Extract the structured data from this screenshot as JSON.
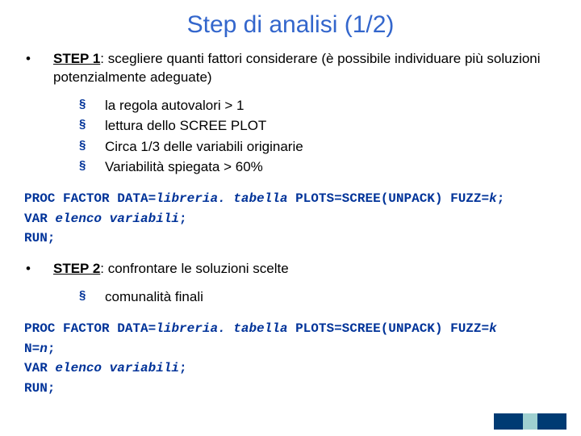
{
  "title_text": "Step di analisi (1/2)",
  "title_color": "#3366cc",
  "bullet_dot": "•",
  "square_bullet": "§",
  "square_bullet_color": "#003399",
  "step1": {
    "label": "STEP 1",
    "rest": ": scegliere quanti fattori considerare (è possibile individuare più soluzioni potenzialmente adeguate)",
    "items": [
      "la regola autovalori > 1",
      "lettura dello SCREE PLOT",
      "Circa 1/3 delle variabili originarie",
      "Variabilità spiegata > 60%"
    ]
  },
  "code1": {
    "line1": {
      "t1": "PROC FACTOR ",
      "t2": "DATA=",
      "t3": "libreria. tabella",
      "t4": " PLOTS=SCREE(UNPACK) FUZZ=",
      "t5": "k",
      "t6": ";"
    },
    "line2": {
      "t1": "VAR ",
      "t2": "elenco variabili",
      "t3": ";"
    },
    "line3": "RUN;"
  },
  "step2": {
    "label": "STEP 2",
    "rest": ": confrontare le soluzioni scelte",
    "items": [
      "comunalità finali"
    ]
  },
  "code2": {
    "line1": {
      "t1": "PROC FACTOR ",
      "t2": "DATA=",
      "t3": "libreria. tabella",
      "t4": " PLOTS=SCREE(UNPACK) FUZZ=",
      "t5": "k"
    },
    "line1b": {
      "t1": "N=",
      "t2": "n",
      "t3": ";"
    },
    "line2": {
      "t1": "VAR ",
      "t2": "elenco variabili",
      "t3": ";"
    },
    "line3": "RUN;"
  },
  "deco_bars": [
    {
      "w": 36,
      "c": "#003b73"
    },
    {
      "w": 18,
      "c": "#9fd0d0"
    },
    {
      "w": 36,
      "c": "#003b73"
    }
  ]
}
